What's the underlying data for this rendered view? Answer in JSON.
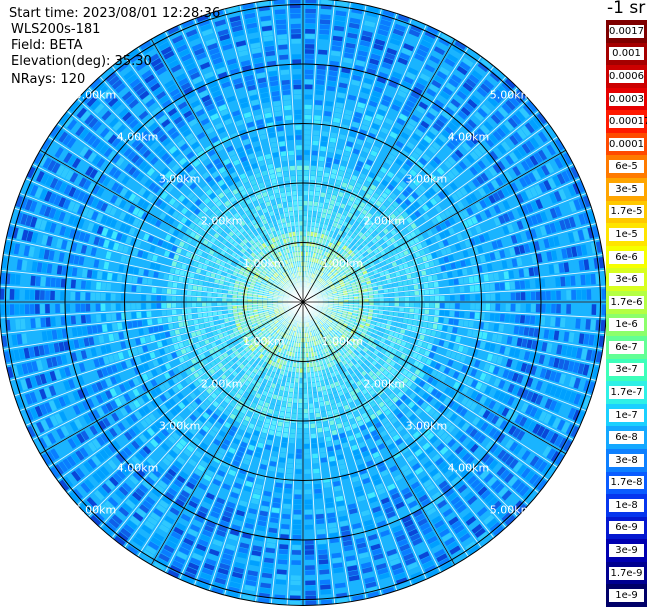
{
  "info": {
    "start_time": "Start time: 2023/08/01 12:28:36",
    "instrument": "WLS200s-181",
    "field": "Field: BETA",
    "elevation": "Elevation(deg): 35.30",
    "nrays": "NRays: 120"
  },
  "chart_data": {
    "type": "heatmap",
    "projection": "polar-ppi",
    "n_rays": 120,
    "range_unit": "km",
    "range_rings_km": [
      1,
      2,
      3,
      4,
      5
    ],
    "range_ring_labels": [
      "1.00km",
      "2.00km",
      "3.00km",
      "4.00km",
      "5.00km"
    ],
    "max_range_km": 5.1,
    "azimuth_spokes_deg": [
      0,
      30,
      60,
      90,
      120,
      150,
      180,
      210,
      240,
      270,
      300,
      330
    ],
    "colorbar": {
      "title": "-1 sr",
      "labels": [
        "0.0017",
        "0.001",
        "0.0006",
        "0.0003",
        "0.00017",
        "0.0001",
        "6e-5",
        "3e-5",
        "1.7e-5",
        "1e-5",
        "6e-6",
        "3e-6",
        "1.7e-6",
        "1e-6",
        "6e-7",
        "3e-7",
        "1.7e-7",
        "1e-7",
        "6e-8",
        "3e-8",
        "1.7e-8",
        "1e-8",
        "6e-9",
        "3e-9",
        "1.7e-9",
        "1e-9"
      ],
      "colors": [
        "#7f0000",
        "#a50000",
        "#cc0000",
        "#e60000",
        "#ff1a00",
        "#ff4a00",
        "#ff7a00",
        "#ffa500",
        "#ffc800",
        "#ffe400",
        "#f6ff00",
        "#d8ff1f",
        "#b4ff43",
        "#8cff6b",
        "#62ff95",
        "#3dffba",
        "#2ff0e6",
        "#1bd0ff",
        "#14a8ff",
        "#0e80ff",
        "#0a5cff",
        "#0636ee",
        "#0418cf",
        "#0000b0",
        "#000090",
        "#000068"
      ]
    },
    "typical_field_level": {
      "center": "1.7e-7 to 6e-7",
      "outer": "6e-8 to 1e-7"
    }
  }
}
